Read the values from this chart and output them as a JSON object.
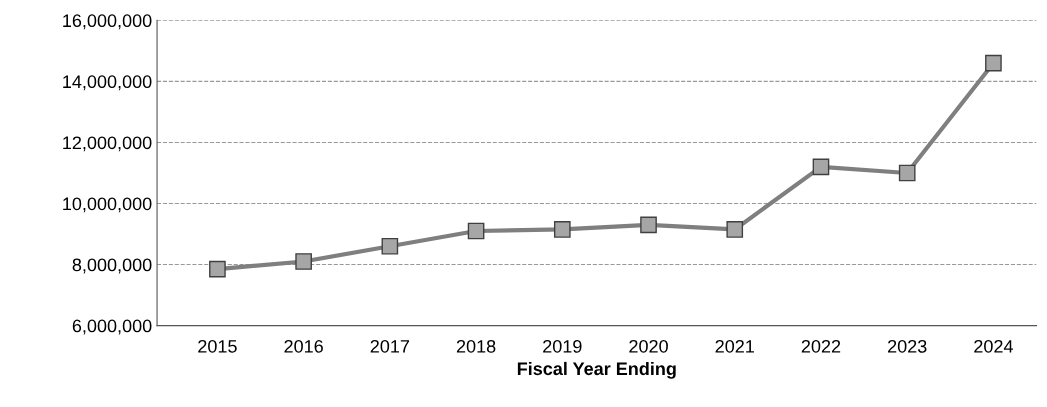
{
  "chart_data": {
    "type": "line",
    "xlabel": "Fiscal Year Ending",
    "categories": [
      "2015",
      "2016",
      "2017",
      "2018",
      "2019",
      "2020",
      "2021",
      "2022",
      "2023",
      "2024"
    ],
    "series": [
      {
        "color": "#7f7f7f",
        "values": [
          7850000,
          8100000,
          8600000,
          9100000,
          9150000,
          9300000,
          9150000,
          11200000,
          11000000,
          14600000
        ]
      }
    ],
    "ylim": [
      6000000,
      16000000
    ],
    "yticks": [
      {
        "value": 6000000,
        "label": "6,000,000"
      },
      {
        "value": 8000000,
        "label": "8,000,000"
      },
      {
        "value": 10000000,
        "label": "10,000,000"
      },
      {
        "value": 12000000,
        "label": "12,000,000"
      },
      {
        "value": 14000000,
        "label": "14,000,000"
      },
      {
        "value": 16000000,
        "label": "16,000,000"
      }
    ],
    "grid": "y",
    "marker": "square",
    "line_style": "solid"
  }
}
